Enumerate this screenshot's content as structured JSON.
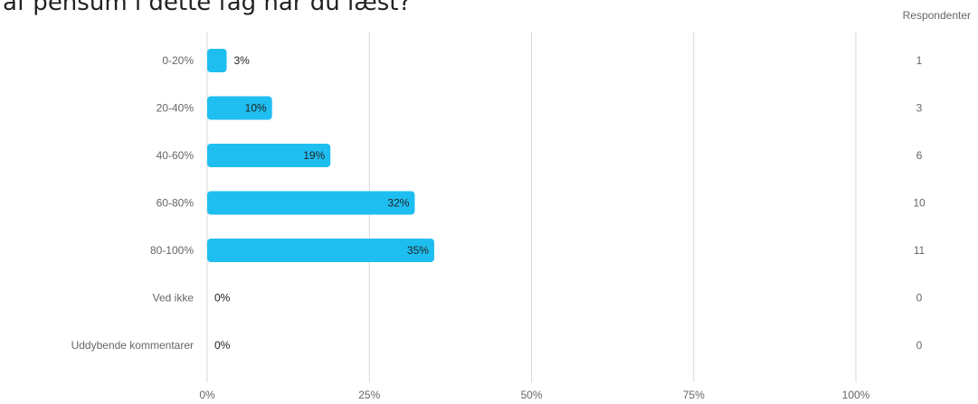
{
  "question": "get af pensum i dette fag har du læst?",
  "respondents_header": "Respondenter",
  "colors": {
    "bar": "#1fbef0",
    "grid": "#d9d9d9",
    "axis_text": "#666666",
    "label_text": "#222222"
  },
  "chart_data": {
    "type": "bar",
    "orientation": "horizontal",
    "categories": [
      "0-20%",
      "20-40%",
      "40-60%",
      "60-80%",
      "80-100%",
      "Ved ikke",
      "Uddybende kommentarer"
    ],
    "values": [
      3,
      10,
      19,
      32,
      35,
      0,
      0
    ],
    "value_labels": [
      "3%",
      "10%",
      "19%",
      "32%",
      "35%",
      "0%",
      "0%"
    ],
    "respondents": [
      "1",
      "3",
      "6",
      "10",
      "11",
      "0",
      "0"
    ],
    "x_ticks": [
      0,
      25,
      50,
      75,
      100
    ],
    "x_tick_labels": [
      "0%",
      "25%",
      "50%",
      "75%",
      "100%"
    ],
    "xlim": [
      0,
      100
    ],
    "grid": true,
    "legend": "none"
  }
}
